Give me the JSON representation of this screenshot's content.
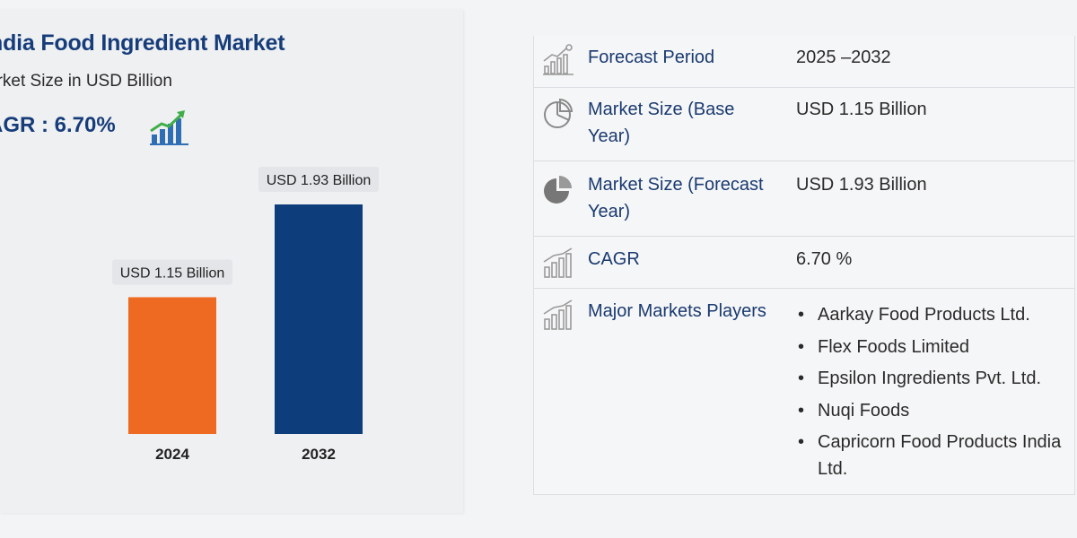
{
  "header": {
    "title": "ndia Food Ingredient Market",
    "subtitle": "arket Size in USD Billion",
    "cagr": "AGR : 6.70%"
  },
  "colors": {
    "bar_2024": "#ee6a22",
    "bar_2032": "#0d3d7b",
    "title": "#163d7a",
    "icon_green": "#3fae49"
  },
  "chart_data": {
    "type": "bar",
    "categories": [
      "2024",
      "2032"
    ],
    "values": [
      1.15,
      1.93
    ],
    "data_labels": [
      "USD 1.15 Billion",
      "USD 1.93 Billion"
    ],
    "title": "ndia Food Ingredient Market",
    "ylabel": "",
    "ylim": [
      0,
      1.93
    ]
  },
  "table": {
    "rows": [
      {
        "icon": "bar-chart-growth-icon",
        "label": "Forecast Period",
        "value": "2025 –2032"
      },
      {
        "icon": "pie-chart-outline-icon",
        "label": "Market Size (Base Year)",
        "value": "USD 1.15 Billion"
      },
      {
        "icon": "pie-chart-filled-icon",
        "label": "Market Size (Forecast Year)",
        "value": "USD 1.93 Billion"
      },
      {
        "icon": "cagr-bars-icon",
        "label": "CAGR",
        "value": "6.70 %"
      },
      {
        "icon": "players-bars-icon",
        "label": "Major Markets Players"
      }
    ],
    "players": [
      "Aarkay Food Products Ltd.",
      "Flex Foods Limited",
      "Epsilon Ingredients Pvt. Ltd.",
      "Nuqi Foods",
      "Capricorn Food Products India Ltd."
    ]
  }
}
